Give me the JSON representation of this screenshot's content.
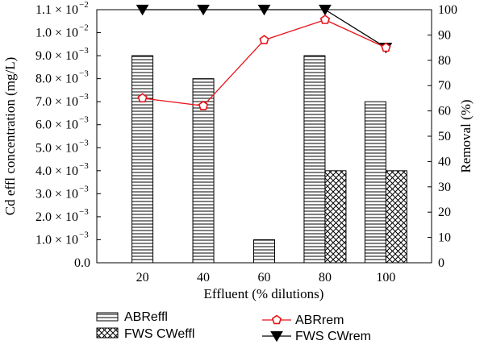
{
  "chart_data": {
    "type": "bar",
    "categories": [
      "20",
      "40",
      "60",
      "80",
      "100"
    ],
    "x_values": [
      20,
      40,
      60,
      80,
      100
    ],
    "xlabel": "Effluent (% dilutions)",
    "ylabel_left": "Cd effl concentration (mg/L)",
    "ylabel_right": "Removal (%)",
    "ylim_left": [
      0,
      0.011
    ],
    "ylim_right": [
      0,
      100
    ],
    "left_ticks": [
      {
        "v": 0,
        "m": "0.0",
        "e": ""
      },
      {
        "v": 0.001,
        "m": "1.0 × 10",
        "e": "−3"
      },
      {
        "v": 0.002,
        "m": "2.0 × 10",
        "e": "−3"
      },
      {
        "v": 0.003,
        "m": "3.0 × 10",
        "e": "−3"
      },
      {
        "v": 0.004,
        "m": "4.0 × 10",
        "e": "−3"
      },
      {
        "v": 0.005,
        "m": "5.0 × 10",
        "e": "−3"
      },
      {
        "v": 0.006,
        "m": "6.0 × 10",
        "e": "−3"
      },
      {
        "v": 0.007,
        "m": "7.0 × 10",
        "e": "−3"
      },
      {
        "v": 0.008,
        "m": "8.0 × 10",
        "e": "−3"
      },
      {
        "v": 0.009,
        "m": "9.0 × 10",
        "e": "−3"
      },
      {
        "v": 0.01,
        "m": "1.0 × 10",
        "e": "−2"
      },
      {
        "v": 0.011,
        "m": "1.1 × 10",
        "e": "−2"
      }
    ],
    "right_ticks": [
      0,
      10,
      20,
      30,
      40,
      50,
      60,
      70,
      80,
      90,
      100
    ],
    "bar_series": [
      {
        "name": "ABReffl",
        "pattern": "horizontal-lines",
        "values": [
          0.009,
          0.008,
          0.001,
          0.009,
          0.007
        ]
      },
      {
        "name": "FWS CWeffl",
        "pattern": "crosshatch",
        "values": [
          null,
          null,
          null,
          0.004,
          0.004
        ]
      }
    ],
    "line_series": [
      {
        "name": "ABRrem",
        "axis": "right",
        "color": "#e8141b",
        "marker": "pentagon-open",
        "values": [
          65,
          62,
          88,
          96,
          85
        ]
      },
      {
        "name": "FWS CWrem",
        "axis": "right",
        "color": "#000000",
        "marker": "triangle-down-filled",
        "values": [
          100,
          100,
          100,
          100,
          85
        ]
      }
    ],
    "legend": "bottom"
  }
}
